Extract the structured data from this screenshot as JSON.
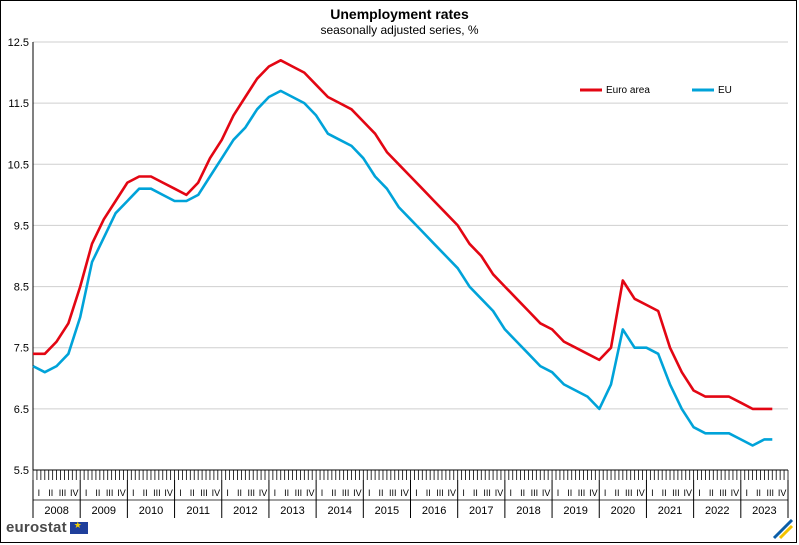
{
  "chart_data": {
    "type": "line",
    "title": "Unemployment rates",
    "subtitle": "seasonally adjusted series, %",
    "ylim": [
      5.5,
      12.5
    ],
    "yticks": [
      "5.5",
      "6.5",
      "7.5",
      "8.5",
      "9.5",
      "10.5",
      "11.5",
      "12.5"
    ],
    "years": [
      "2008",
      "2009",
      "2010",
      "2011",
      "2012",
      "2013",
      "2014",
      "2015",
      "2016",
      "2017",
      "2018",
      "2019",
      "2020",
      "2021",
      "2022",
      "2023"
    ],
    "quarter_labels": [
      "I",
      "II",
      "III",
      "IV"
    ],
    "grid": "horizontal",
    "legend_position": "top-right",
    "x_start": "2008-01",
    "x_end": "2023-09",
    "series": [
      {
        "name": "Euro area",
        "color": "#e30613",
        "points": [
          [
            "2008-01",
            7.4
          ],
          [
            "2008-04",
            7.4
          ],
          [
            "2008-07",
            7.6
          ],
          [
            "2008-10",
            7.9
          ],
          [
            "2009-01",
            8.5
          ],
          [
            "2009-04",
            9.2
          ],
          [
            "2009-07",
            9.6
          ],
          [
            "2009-10",
            9.9
          ],
          [
            "2010-01",
            10.2
          ],
          [
            "2010-04",
            10.3
          ],
          [
            "2010-07",
            10.3
          ],
          [
            "2010-10",
            10.2
          ],
          [
            "2011-01",
            10.1
          ],
          [
            "2011-04",
            10.0
          ],
          [
            "2011-07",
            10.2
          ],
          [
            "2011-10",
            10.6
          ],
          [
            "2012-01",
            10.9
          ],
          [
            "2012-04",
            11.3
          ],
          [
            "2012-07",
            11.6
          ],
          [
            "2012-10",
            11.9
          ],
          [
            "2013-01",
            12.1
          ],
          [
            "2013-04",
            12.2
          ],
          [
            "2013-07",
            12.1
          ],
          [
            "2013-10",
            12.0
          ],
          [
            "2014-01",
            11.8
          ],
          [
            "2014-04",
            11.6
          ],
          [
            "2014-07",
            11.5
          ],
          [
            "2014-10",
            11.4
          ],
          [
            "2015-01",
            11.2
          ],
          [
            "2015-04",
            11.0
          ],
          [
            "2015-07",
            10.7
          ],
          [
            "2015-10",
            10.5
          ],
          [
            "2016-01",
            10.3
          ],
          [
            "2016-04",
            10.1
          ],
          [
            "2016-07",
            9.9
          ],
          [
            "2016-10",
            9.7
          ],
          [
            "2017-01",
            9.5
          ],
          [
            "2017-04",
            9.2
          ],
          [
            "2017-07",
            9.0
          ],
          [
            "2017-10",
            8.7
          ],
          [
            "2018-01",
            8.5
          ],
          [
            "2018-04",
            8.3
          ],
          [
            "2018-07",
            8.1
          ],
          [
            "2018-10",
            7.9
          ],
          [
            "2019-01",
            7.8
          ],
          [
            "2019-04",
            7.6
          ],
          [
            "2019-07",
            7.5
          ],
          [
            "2019-10",
            7.4
          ],
          [
            "2020-01",
            7.3
          ],
          [
            "2020-04",
            7.5
          ],
          [
            "2020-07",
            8.6
          ],
          [
            "2020-10",
            8.3
          ],
          [
            "2021-01",
            8.2
          ],
          [
            "2021-04",
            8.1
          ],
          [
            "2021-07",
            7.5
          ],
          [
            "2021-10",
            7.1
          ],
          [
            "2022-01",
            6.8
          ],
          [
            "2022-04",
            6.7
          ],
          [
            "2022-07",
            6.7
          ],
          [
            "2022-10",
            6.7
          ],
          [
            "2023-01",
            6.6
          ],
          [
            "2023-04",
            6.5
          ],
          [
            "2023-07",
            6.5
          ],
          [
            "2023-09",
            6.5
          ]
        ]
      },
      {
        "name": "EU",
        "color": "#00a3d9",
        "points": [
          [
            "2008-01",
            7.2
          ],
          [
            "2008-04",
            7.1
          ],
          [
            "2008-07",
            7.2
          ],
          [
            "2008-10",
            7.4
          ],
          [
            "2009-01",
            8.0
          ],
          [
            "2009-04",
            8.9
          ],
          [
            "2009-07",
            9.3
          ],
          [
            "2009-10",
            9.7
          ],
          [
            "2010-01",
            9.9
          ],
          [
            "2010-04",
            10.1
          ],
          [
            "2010-07",
            10.1
          ],
          [
            "2010-10",
            10.0
          ],
          [
            "2011-01",
            9.9
          ],
          [
            "2011-04",
            9.9
          ],
          [
            "2011-07",
            10.0
          ],
          [
            "2011-10",
            10.3
          ],
          [
            "2012-01",
            10.6
          ],
          [
            "2012-04",
            10.9
          ],
          [
            "2012-07",
            11.1
          ],
          [
            "2012-10",
            11.4
          ],
          [
            "2013-01",
            11.6
          ],
          [
            "2013-04",
            11.7
          ],
          [
            "2013-07",
            11.6
          ],
          [
            "2013-10",
            11.5
          ],
          [
            "2014-01",
            11.3
          ],
          [
            "2014-04",
            11.0
          ],
          [
            "2014-07",
            10.9
          ],
          [
            "2014-10",
            10.8
          ],
          [
            "2015-01",
            10.6
          ],
          [
            "2015-04",
            10.3
          ],
          [
            "2015-07",
            10.1
          ],
          [
            "2015-10",
            9.8
          ],
          [
            "2016-01",
            9.6
          ],
          [
            "2016-04",
            9.4
          ],
          [
            "2016-07",
            9.2
          ],
          [
            "2016-10",
            9.0
          ],
          [
            "2017-01",
            8.8
          ],
          [
            "2017-04",
            8.5
          ],
          [
            "2017-07",
            8.3
          ],
          [
            "2017-10",
            8.1
          ],
          [
            "2018-01",
            7.8
          ],
          [
            "2018-04",
            7.6
          ],
          [
            "2018-07",
            7.4
          ],
          [
            "2018-10",
            7.2
          ],
          [
            "2019-01",
            7.1
          ],
          [
            "2019-04",
            6.9
          ],
          [
            "2019-07",
            6.8
          ],
          [
            "2019-10",
            6.7
          ],
          [
            "2020-01",
            6.5
          ],
          [
            "2020-04",
            6.9
          ],
          [
            "2020-07",
            7.8
          ],
          [
            "2020-10",
            7.5
          ],
          [
            "2021-01",
            7.5
          ],
          [
            "2021-04",
            7.4
          ],
          [
            "2021-07",
            6.9
          ],
          [
            "2021-10",
            6.5
          ],
          [
            "2022-01",
            6.2
          ],
          [
            "2022-04",
            6.1
          ],
          [
            "2022-07",
            6.1
          ],
          [
            "2022-10",
            6.1
          ],
          [
            "2023-01",
            6.0
          ],
          [
            "2023-04",
            5.9
          ],
          [
            "2023-07",
            6.0
          ],
          [
            "2023-09",
            6.0
          ]
        ]
      }
    ]
  },
  "branding": {
    "logo_text": "eurostat",
    "flag_icon": "eu-flag-icon"
  }
}
